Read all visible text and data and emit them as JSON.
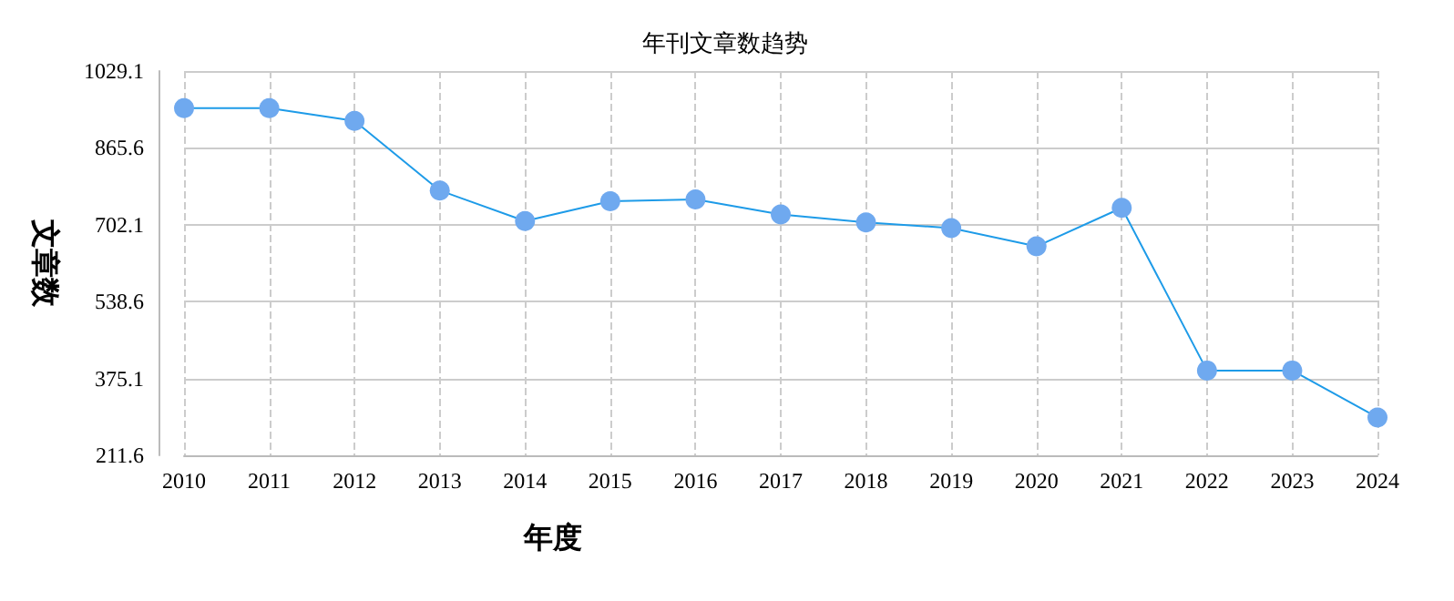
{
  "chart_data": {
    "type": "line",
    "title": "年刊文章数趋势",
    "xlabel": "年度",
    "ylabel": "文章数",
    "categories": [
      "2010",
      "2011",
      "2012",
      "2013",
      "2014",
      "2015",
      "2016",
      "2017",
      "2018",
      "2019",
      "2020",
      "2021",
      "2022",
      "2023",
      "2024"
    ],
    "series": [
      {
        "color": "#1e9be8",
        "values": [
          950,
          950,
          923,
          775,
          710,
          752,
          756,
          724,
          707,
          695,
          656,
          738,
          392,
          392,
          292
        ]
      }
    ],
    "ylim": [
      211.6,
      1029.1
    ],
    "yticks": [
      211.6,
      375.1,
      538.6,
      702.1,
      865.6,
      1029.1
    ],
    "grid": true,
    "marker": "circle",
    "line_style": "solid"
  }
}
